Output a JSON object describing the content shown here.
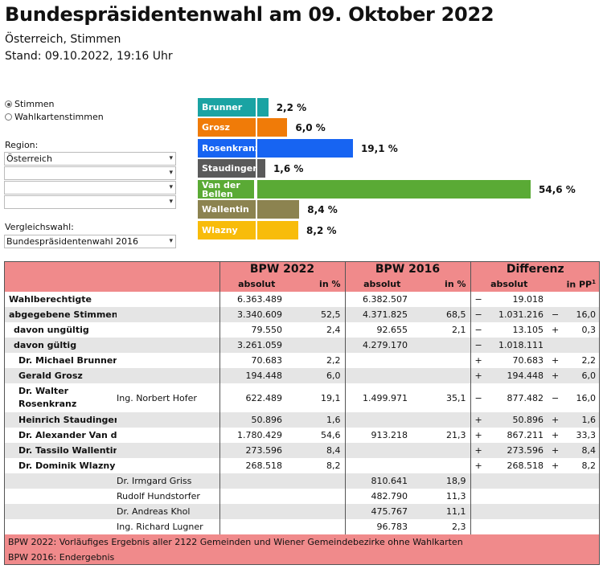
{
  "header": {
    "title": "Bundespräsidentenwahl am 09. Oktober 2022",
    "subtitle": "Österreich, Stimmen",
    "stand": "Stand: 09.10.2022, 19:16 Uhr"
  },
  "controls": {
    "radio_stimmen": "Stimmen",
    "radio_wahlkarten": "Wahlkartenstimmen",
    "region_label": "Region:",
    "region_selects": [
      "Österreich",
      "",
      "",
      ""
    ],
    "vergleich_label": "Vergleichswahl:",
    "vergleich_value": "Bundespräsidentenwahl 2016"
  },
  "bars": {
    "items": [
      {
        "name": "Brunner",
        "value": 2.2,
        "label": "2,2 %",
        "color": "#1aa3a3"
      },
      {
        "name": "Grosz",
        "value": 6.0,
        "label": "6,0 %",
        "color": "#f07b08"
      },
      {
        "name": "Rosenkranz",
        "value": 19.1,
        "label": "19,1 %",
        "color": "#1764f2"
      },
      {
        "name": "Staudinger",
        "value": 1.6,
        "label": "1,6 %",
        "color": "#5a5a5a"
      },
      {
        "name": "Van der Bellen",
        "value": 54.6,
        "label": "54,6 %",
        "color": "#5aaa35"
      },
      {
        "name": "Wallentin",
        "value": 8.4,
        "label": "8,4 %",
        "color": "#8c8350"
      },
      {
        "name": "Wlazny",
        "value": 8.2,
        "label": "8,2 %",
        "color": "#f8bc0a"
      }
    ]
  },
  "table": {
    "group_headers": [
      "BPW 2022",
      "BPW 2016",
      "Differenz"
    ],
    "sub_headers": [
      "absolut",
      "in %",
      "absolut",
      "in %",
      "absolut",
      "in PP"
    ],
    "sub_header_sup": "1",
    "rows": [
      {
        "label": "Wahlberechtigte",
        "label2": "",
        "indent": 0,
        "a22": "6.363.489",
        "p22": "",
        "a16": "6.382.507",
        "p16": "",
        "ds": "−",
        "da": "19.018",
        "pps": "",
        "pp": ""
      },
      {
        "label": "abgegebene Stimmen",
        "label2": "",
        "indent": 0,
        "a22": "3.340.609",
        "p22": "52,5",
        "a16": "4.371.825",
        "p16": "68,5",
        "ds": "−",
        "da": "1.031.216",
        "pps": "−",
        "pp": "16,0"
      },
      {
        "label": "davon ungültig",
        "label2": "",
        "indent": 1,
        "a22": "79.550",
        "p22": "2,4",
        "a16": "92.655",
        "p16": "2,1",
        "ds": "−",
        "da": "13.105",
        "pps": "+",
        "pp": "0,3"
      },
      {
        "label": "davon gültig",
        "label2": "",
        "indent": 1,
        "a22": "3.261.059",
        "p22": "",
        "a16": "4.279.170",
        "p16": "",
        "ds": "−",
        "da": "1.018.111",
        "pps": "",
        "pp": ""
      },
      {
        "label": "Dr. Michael Brunner",
        "label2": "",
        "indent": 2,
        "a22": "70.683",
        "p22": "2,2",
        "a16": "",
        "p16": "",
        "ds": "+",
        "da": "70.683",
        "pps": "+",
        "pp": "2,2"
      },
      {
        "label": "Gerald Grosz",
        "label2": "",
        "indent": 2,
        "a22": "194.448",
        "p22": "6,0",
        "a16": "",
        "p16": "",
        "ds": "+",
        "da": "194.448",
        "pps": "+",
        "pp": "6,0"
      },
      {
        "label": "Dr. Walter Rosenkranz",
        "label2": "Ing. Norbert Hofer",
        "indent": 2,
        "a22": "622.489",
        "p22": "19,1",
        "a16": "1.499.971",
        "p16": "35,1",
        "ds": "−",
        "da": "877.482",
        "pps": "−",
        "pp": "16,0"
      },
      {
        "label": "Heinrich Staudinger",
        "label2": "",
        "indent": 2,
        "a22": "50.896",
        "p22": "1,6",
        "a16": "",
        "p16": "",
        "ds": "+",
        "da": "50.896",
        "pps": "+",
        "pp": "1,6"
      },
      {
        "label": "Dr. Alexander Van der Bellen",
        "label2": "",
        "indent": 2,
        "a22": "1.780.429",
        "p22": "54,6",
        "a16": "913.218",
        "p16": "21,3",
        "ds": "+",
        "da": "867.211",
        "pps": "+",
        "pp": "33,3"
      },
      {
        "label": "Dr. Tassilo Wallentin",
        "label2": "",
        "indent": 2,
        "a22": "273.596",
        "p22": "8,4",
        "a16": "",
        "p16": "",
        "ds": "+",
        "da": "273.596",
        "pps": "+",
        "pp": "8,4"
      },
      {
        "label": "Dr. Dominik Wlazny",
        "label2": "",
        "indent": 2,
        "a22": "268.518",
        "p22": "8,2",
        "a16": "",
        "p16": "",
        "ds": "+",
        "da": "268.518",
        "pps": "+",
        "pp": "8,2"
      },
      {
        "label": "",
        "label2": "Dr. Irmgard Griss",
        "indent": 2,
        "a22": "",
        "p22": "",
        "a16": "810.641",
        "p16": "18,9",
        "ds": "",
        "da": "",
        "pps": "",
        "pp": ""
      },
      {
        "label": "",
        "label2": "Rudolf Hundstorfer",
        "indent": 2,
        "a22": "",
        "p22": "",
        "a16": "482.790",
        "p16": "11,3",
        "ds": "",
        "da": "",
        "pps": "",
        "pp": ""
      },
      {
        "label": "",
        "label2": "Dr. Andreas Khol",
        "indent": 2,
        "a22": "",
        "p22": "",
        "a16": "475.767",
        "p16": "11,1",
        "ds": "",
        "da": "",
        "pps": "",
        "pp": ""
      },
      {
        "label": "",
        "label2": "Ing. Richard Lugner",
        "indent": 2,
        "a22": "",
        "p22": "",
        "a16": "96.783",
        "p16": "2,3",
        "ds": "",
        "da": "",
        "pps": "",
        "pp": ""
      }
    ],
    "footnotes": [
      "BPW 2022: Vorläufiges Ergebnis aller 2122 Gemeinden und Wiener Gemeindebezirke ohne Wahlkarten",
      "BPW 2016: Endergebnis"
    ]
  }
}
